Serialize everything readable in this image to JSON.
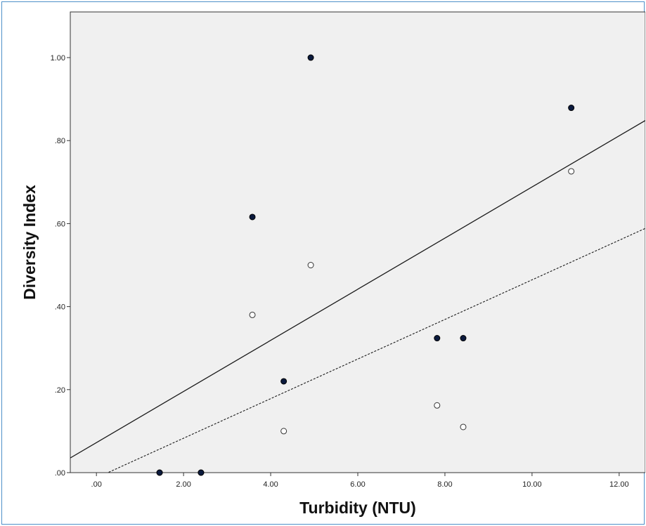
{
  "chart_data": {
    "type": "scatter",
    "title": "",
    "xlabel": "Turbidity (NTU)",
    "ylabel": "Diversity Index",
    "xlim": [
      -0.6,
      12.6
    ],
    "ylim": [
      0,
      1.11
    ],
    "x_ticks": [
      0,
      2,
      4,
      6,
      8,
      10,
      12
    ],
    "x_tick_labels": [
      ".00",
      "2.00",
      "4.00",
      "6.00",
      "8.00",
      "10.00",
      "12.00"
    ],
    "y_ticks": [
      0,
      0.2,
      0.4,
      0.6,
      0.8,
      1.0
    ],
    "y_tick_labels": [
      ".00",
      ".20",
      ".40",
      ".60",
      ".80",
      "1.00"
    ],
    "grid": false,
    "background": "#f0f0f0",
    "series": [
      {
        "marker": "filled",
        "color": "#0b1a3d",
        "x": [
          1.45,
          2.4,
          3.58,
          4.3,
          4.92,
          7.82,
          8.42,
          10.9
        ],
        "y": [
          0.0,
          0.0,
          0.616,
          0.22,
          1.0,
          0.324,
          0.324,
          0.879
        ]
      },
      {
        "marker": "hollow",
        "color": "#333333",
        "x": [
          1.45,
          2.4,
          3.58,
          4.3,
          4.92,
          7.82,
          8.42,
          10.9
        ],
        "y": [
          0.0,
          0.0,
          0.38,
          0.1,
          0.5,
          0.162,
          0.11,
          0.726
        ]
      }
    ],
    "fit_lines": [
      {
        "style": "solid",
        "intercept": 0.0723,
        "slope": 0.0616
      },
      {
        "style": "dotted",
        "intercept": -0.0125,
        "slope": 0.0477
      }
    ]
  }
}
